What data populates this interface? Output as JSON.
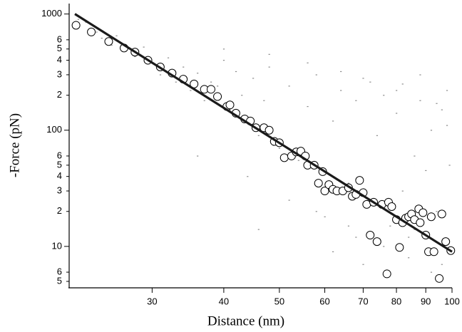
{
  "chart_data": {
    "type": "scatter",
    "x_label": "Distance (nm)",
    "y_label": "-Force (pN)",
    "xlog": true,
    "ylog": true,
    "xlim": [
      21.5,
      100
    ],
    "ylim": [
      4.4,
      1230
    ],
    "xticks": [
      30,
      40,
      50,
      60,
      70,
      80,
      90,
      100
    ],
    "yticks": [
      {
        "value": 5,
        "label": "5"
      },
      {
        "value": 6,
        "label": "6"
      },
      10,
      {
        "value": 20,
        "label": "2"
      },
      {
        "value": 30,
        "label": "3"
      },
      {
        "value": 40,
        "label": "4"
      },
      {
        "value": 50,
        "label": "5"
      },
      {
        "value": 60,
        "label": "6"
      },
      100,
      {
        "value": 200,
        "label": "2"
      },
      {
        "value": 300,
        "label": "3"
      },
      {
        "value": 400,
        "label": "4"
      },
      {
        "value": 500,
        "label": "5"
      },
      {
        "value": 600,
        "label": "6"
      },
      1000
    ],
    "series": [
      {
        "type": "scatter",
        "marker": "dot",
        "color": "#8a8a8a",
        "x": [
          22.3,
          23,
          24,
          24.5,
          25.5,
          26,
          27,
          28,
          29,
          30,
          31,
          32,
          33,
          34,
          35,
          36,
          37,
          38,
          39,
          40,
          41,
          42,
          43,
          44,
          45,
          46,
          47,
          48,
          50,
          52,
          54,
          56,
          58,
          60,
          62,
          64,
          66,
          68,
          70,
          72,
          74,
          76,
          78,
          80,
          82,
          84,
          86,
          88,
          90,
          92,
          94,
          96,
          98,
          99,
          36,
          44,
          52,
          60,
          68,
          76,
          84,
          92,
          40,
          48,
          56,
          64,
          72,
          80,
          88,
          96,
          58,
          66,
          74,
          82,
          90,
          98,
          46,
          62,
          70,
          86,
          94
        ],
        "values": [
          900,
          850,
          700,
          620,
          540,
          650,
          480,
          430,
          520,
          380,
          300,
          420,
          260,
          350,
          220,
          310,
          180,
          260,
          240,
          400,
          150,
          320,
          200,
          130,
          280,
          90,
          180,
          350,
          70,
          240,
          55,
          160,
          300,
          45,
          120,
          220,
          35,
          180,
          280,
          25,
          90,
          200,
          15,
          140,
          250,
          12,
          60,
          300,
          9,
          100,
          170,
          7,
          220,
          50,
          60,
          40,
          25,
          18,
          12,
          10,
          8,
          6,
          500,
          450,
          380,
          320,
          260,
          220,
          180,
          150,
          20,
          15,
          11,
          30,
          45,
          110,
          14,
          9,
          7,
          14,
          20
        ]
      },
      {
        "type": "scatter",
        "marker": "circle",
        "color": "#000000",
        "x": [
          22.1,
          23.5,
          25.2,
          26.8,
          28,
          29.5,
          31,
          32.5,
          34,
          35.5,
          37,
          38,
          39,
          40.5,
          41,
          42,
          43.5,
          44.5,
          45.5,
          47,
          48,
          49,
          50,
          51,
          52.5,
          53.5,
          54.5,
          55.5,
          56,
          57.5,
          58.5,
          59.5,
          60,
          61,
          62,
          63,
          64.5,
          66,
          67,
          68,
          69,
          70,
          71,
          72,
          73,
          74,
          75.5,
          77,
          77.5,
          78.5,
          80,
          81,
          82,
          83,
          84,
          85,
          86,
          87.5,
          88,
          89,
          90,
          91,
          92,
          93,
          95,
          96,
          97.5,
          99.5
        ],
        "values": [
          800,
          700,
          580,
          510,
          470,
          400,
          350,
          310,
          275,
          250,
          225,
          225,
          195,
          160,
          165,
          140,
          125,
          120,
          105,
          105,
          100,
          80,
          78,
          58,
          60,
          65,
          66,
          60,
          50,
          50,
          35,
          44,
          30,
          34,
          31,
          30,
          30,
          32,
          27,
          28,
          37,
          29,
          23,
          12.5,
          24,
          11,
          23,
          5.8,
          24,
          22,
          17,
          9.8,
          16,
          17.5,
          18,
          19,
          17,
          21,
          16,
          19.5,
          12.5,
          9,
          18,
          9,
          5.3,
          19,
          11,
          9.2
        ]
      },
      {
        "type": "line",
        "color": "#1a1a1a",
        "x": [
          22,
          100
        ],
        "values": [
          1000,
          9
        ]
      }
    ]
  }
}
